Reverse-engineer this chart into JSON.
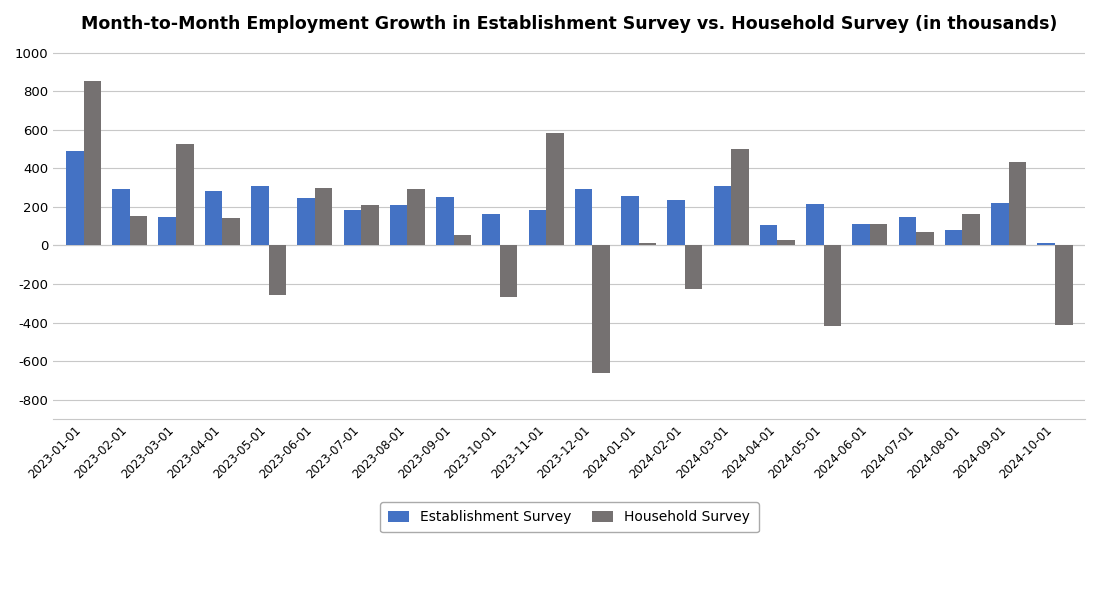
{
  "title": "Month-to-Month Employment Growth in Establishment Survey vs. Household Survey (in thousands)",
  "categories": [
    "2023-01-01",
    "2023-02-01",
    "2023-03-01",
    "2023-04-01",
    "2023-05-01",
    "2023-06-01",
    "2023-07-01",
    "2023-08-01",
    "2023-09-01",
    "2023-10-01",
    "2023-11-01",
    "2023-12-01",
    "2024-01-01",
    "2024-02-01",
    "2024-03-01",
    "2024-04-01",
    "2024-05-01",
    "2024-06-01",
    "2024-07-01",
    "2024-08-01",
    "2024-09-01",
    "2024-10-01"
  ],
  "establishment_survey": [
    490,
    290,
    145,
    280,
    310,
    245,
    185,
    210,
    250,
    165,
    185,
    290,
    255,
    235,
    310,
    105,
    215,
    110,
    145,
    80,
    220,
    15
  ],
  "household_survey": [
    850,
    150,
    525,
    140,
    -255,
    300,
    210,
    295,
    55,
    -265,
    585,
    -660,
    15,
    -225,
    500,
    30,
    -420,
    110,
    70,
    165,
    430,
    -415
  ],
  "establishment_color": "#4472C4",
  "household_color": "#757171",
  "background_color": "#FFFFFF",
  "ylim": [
    -900,
    1050
  ],
  "yticks": [
    -800,
    -600,
    -400,
    -200,
    0,
    200,
    400,
    600,
    800,
    1000
  ],
  "grid_color": "#C8C8C8",
  "title_fontsize": 12.5,
  "legend_labels": [
    "Establishment Survey",
    "Household Survey"
  ],
  "bar_width": 0.38
}
